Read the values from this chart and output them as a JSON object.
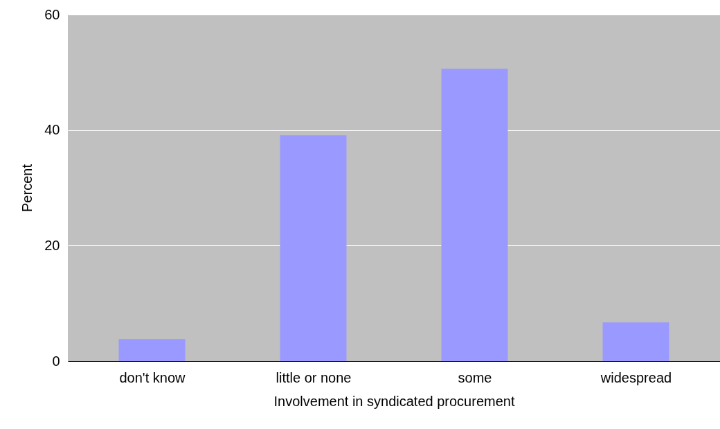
{
  "chart_data": {
    "type": "bar",
    "xlabel": "Involvement in syndicated procurement",
    "ylabel": "Percent",
    "categories": [
      "don't know",
      "little or none",
      "some",
      "widespread"
    ],
    "values": [
      3.8,
      39.1,
      50.6,
      6.7
    ],
    "color": "#9999ff",
    "ylim": [
      0,
      60
    ],
    "yticks": [
      0,
      20,
      40,
      60
    ],
    "grid": "y"
  }
}
